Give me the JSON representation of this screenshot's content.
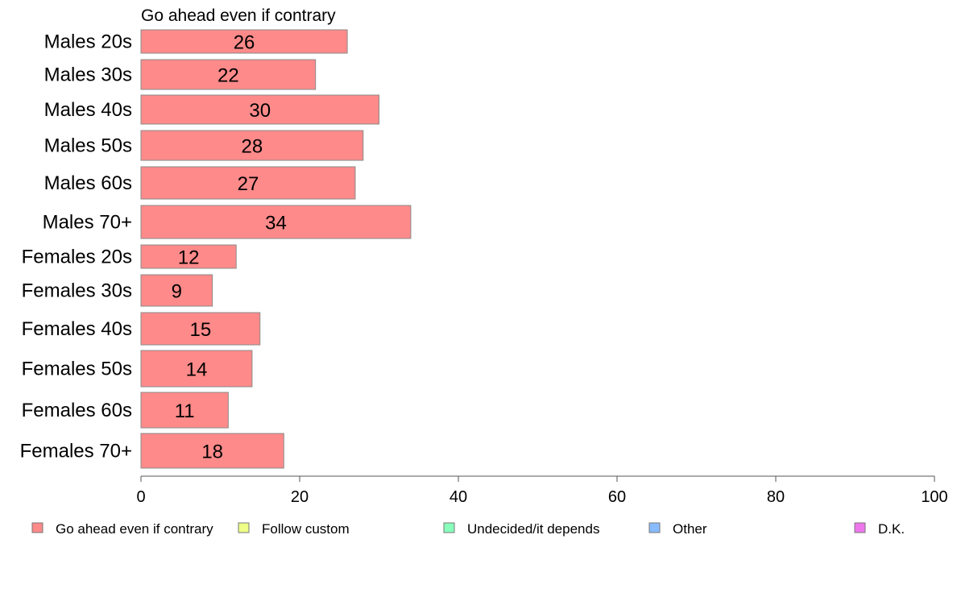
{
  "chart_data": {
    "type": "bar",
    "orientation": "horizontal",
    "title": "Go ahead even if contrary",
    "categories": [
      "Males 20s",
      "Males 30s",
      "Males 40s",
      "Males 50s",
      "Males 60s",
      "Males 70+",
      "Females 20s",
      "Females 30s",
      "Females 40s",
      "Females 50s",
      "Females 60s",
      "Females 70+"
    ],
    "series": [
      {
        "name": "Go ahead even if contrary",
        "color": "#ff8a8a",
        "values": [
          26,
          22,
          30,
          28,
          27,
          34,
          12,
          9,
          15,
          14,
          11,
          18
        ]
      }
    ],
    "xlim": [
      0,
      100
    ],
    "xticks": [
      0,
      20,
      40,
      60,
      80,
      100
    ],
    "grid": false,
    "legend_position": "bottom",
    "legend": [
      {
        "label": "Go ahead even if contrary",
        "color": "#ff8a8a"
      },
      {
        "label": "Follow custom",
        "color": "#eeff88"
      },
      {
        "label": "Undecided/it depends",
        "color": "#88ffbb"
      },
      {
        "label": "Other",
        "color": "#88bbff"
      },
      {
        "label": "D.K.",
        "color": "#ee77ee"
      }
    ]
  }
}
